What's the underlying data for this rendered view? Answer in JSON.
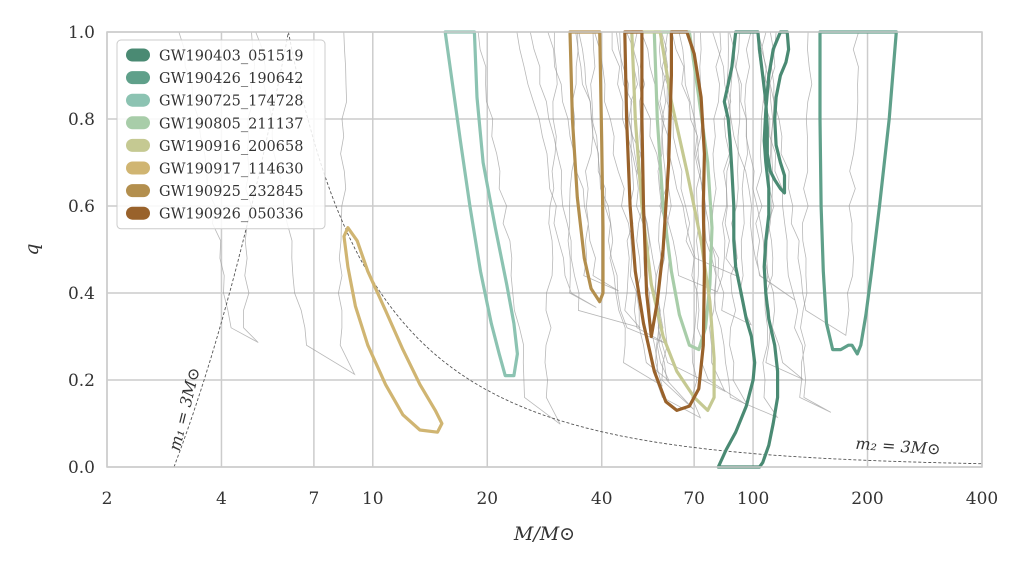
{
  "chart_data": {
    "type": "contour",
    "xlabel": "M/M⊙",
    "ylabel": "q",
    "xscale": "log",
    "xlim": [
      2,
      400
    ],
    "ylim": [
      0,
      1
    ],
    "xticks": [
      2,
      4,
      7,
      10,
      20,
      40,
      70,
      100,
      200,
      400
    ],
    "xtick_labels": [
      "2",
      "4",
      "7",
      "10",
      "20",
      "40",
      "70",
      "100",
      "200",
      "400"
    ],
    "yticks": [
      0,
      0.2,
      0.4,
      0.6,
      0.8,
      1.0
    ],
    "ytick_labels": [
      "0.0",
      "0.2",
      "0.4",
      "0.6",
      "0.8",
      "1.0"
    ],
    "grid": true,
    "legend_position": "top-left",
    "annotations": [
      {
        "text": "m₁ = 3M⊙",
        "curve": "m1 = 3 Msun"
      },
      {
        "text": "m₂ = 3M⊙",
        "curve": "m2 = 3 Msun"
      }
    ],
    "series": [
      {
        "name": "GW190403_051519",
        "color": "#4a8a73",
        "contour": [
          [
            81,
            0.0
          ],
          [
            85,
            0.04
          ],
          [
            90,
            0.08
          ],
          [
            96,
            0.14
          ],
          [
            100,
            0.2
          ],
          [
            101,
            0.24
          ],
          [
            99,
            0.3
          ],
          [
            96,
            0.34
          ],
          [
            93,
            0.4
          ],
          [
            90,
            0.46
          ],
          [
            89,
            0.52
          ],
          [
            89,
            0.6
          ],
          [
            88,
            0.68
          ],
          [
            87,
            0.75
          ],
          [
            86,
            0.8
          ],
          [
            84,
            0.84
          ],
          [
            86,
            0.88
          ],
          [
            88,
            0.92
          ],
          [
            89,
            0.96
          ],
          [
            90,
            1.0
          ],
          [
            103,
            1.0
          ],
          [
            104,
            0.96
          ],
          [
            106,
            0.9
          ],
          [
            108,
            0.84
          ],
          [
            109,
            0.78
          ],
          [
            109,
            0.72
          ],
          [
            111,
            0.68
          ],
          [
            114,
            0.66
          ],
          [
            118,
            0.64
          ],
          [
            121,
            0.63
          ],
          [
            121,
            0.67
          ],
          [
            118,
            0.7
          ],
          [
            115,
            0.74
          ],
          [
            114,
            0.8
          ],
          [
            115,
            0.85
          ],
          [
            118,
            0.9
          ],
          [
            122,
            0.93
          ],
          [
            124,
            0.96
          ],
          [
            123,
            1.0
          ],
          [
            118,
            1.0
          ],
          [
            113,
            0.96
          ],
          [
            110,
            0.9
          ],
          [
            108,
            0.82
          ],
          [
            107,
            0.75
          ],
          [
            108,
            0.7
          ],
          [
            110,
            0.64
          ],
          [
            110,
            0.58
          ],
          [
            108,
            0.52
          ],
          [
            107,
            0.46
          ],
          [
            108,
            0.4
          ],
          [
            110,
            0.34
          ],
          [
            114,
            0.28
          ],
          [
            116,
            0.22
          ],
          [
            116,
            0.16
          ],
          [
            113,
            0.1
          ],
          [
            110,
            0.05
          ],
          [
            106,
            0.01
          ],
          [
            104,
            0.0
          ],
          [
            81,
            0.0
          ]
        ]
      },
      {
        "name": "GW190426_190642",
        "color": "#5fa08a",
        "contour": [
          [
            150,
            1.0
          ],
          [
            150,
            0.8
          ],
          [
            151,
            0.6
          ],
          [
            153,
            0.45
          ],
          [
            156,
            0.33
          ],
          [
            162,
            0.27
          ],
          [
            170,
            0.27
          ],
          [
            178,
            0.28
          ],
          [
            182,
            0.28
          ],
          [
            188,
            0.26
          ],
          [
            192,
            0.28
          ],
          [
            198,
            0.35
          ],
          [
            205,
            0.45
          ],
          [
            215,
            0.6
          ],
          [
            228,
            0.8
          ],
          [
            238,
            1.0
          ],
          [
            150,
            1.0
          ]
        ]
      },
      {
        "name": "GW190725_174728",
        "color": "#8cc3b2",
        "contour": [
          [
            15.5,
            1.0
          ],
          [
            16.2,
            0.88
          ],
          [
            17,
            0.75
          ],
          [
            18,
            0.6
          ],
          [
            19.2,
            0.45
          ],
          [
            20.5,
            0.33
          ],
          [
            21.5,
            0.26
          ],
          [
            22.3,
            0.21
          ],
          [
            23.5,
            0.21
          ],
          [
            24,
            0.26
          ],
          [
            23.5,
            0.33
          ],
          [
            22.5,
            0.42
          ],
          [
            21,
            0.55
          ],
          [
            19.5,
            0.7
          ],
          [
            18.8,
            0.85
          ],
          [
            18.5,
            1.0
          ],
          [
            15.5,
            1.0
          ]
        ]
      },
      {
        "name": "GW190805_211137",
        "color": "#a8cda9",
        "contour": [
          [
            55,
            1.0
          ],
          [
            56,
            0.8
          ],
          [
            58,
            0.6
          ],
          [
            61,
            0.45
          ],
          [
            64,
            0.35
          ],
          [
            68,
            0.28
          ],
          [
            72,
            0.27
          ],
          [
            75,
            0.32
          ],
          [
            77,
            0.42
          ],
          [
            78,
            0.55
          ],
          [
            76,
            0.7
          ],
          [
            72,
            0.85
          ],
          [
            68,
            1.0
          ],
          [
            55,
            1.0
          ]
        ]
      },
      {
        "name": "GW190916_200658",
        "color": "#c5c992",
        "contour": [
          [
            48,
            1.0
          ],
          [
            49,
            0.8
          ],
          [
            51,
            0.6
          ],
          [
            54,
            0.42
          ],
          [
            58,
            0.3
          ],
          [
            63,
            0.22
          ],
          [
            70,
            0.16
          ],
          [
            76,
            0.13
          ],
          [
            79,
            0.16
          ],
          [
            79,
            0.25
          ],
          [
            77,
            0.38
          ],
          [
            73,
            0.52
          ],
          [
            67,
            0.68
          ],
          [
            61,
            0.84
          ],
          [
            57,
            1.0
          ],
          [
            48,
            1.0
          ]
        ]
      },
      {
        "name": "GW190917_114630",
        "color": "#d0b572",
        "contour": [
          [
            8.4,
            0.53
          ],
          [
            8.6,
            0.55
          ],
          [
            9.1,
            0.52
          ],
          [
            9.7,
            0.45
          ],
          [
            10.8,
            0.36
          ],
          [
            12,
            0.27
          ],
          [
            13.3,
            0.19
          ],
          [
            14.6,
            0.13
          ],
          [
            15.2,
            0.1
          ],
          [
            14.8,
            0.08
          ],
          [
            13.3,
            0.085
          ],
          [
            12,
            0.12
          ],
          [
            10.8,
            0.19
          ],
          [
            9.7,
            0.28
          ],
          [
            9,
            0.37
          ],
          [
            8.6,
            0.46
          ],
          [
            8.4,
            0.53
          ]
        ]
      },
      {
        "name": "GW190925_232845",
        "color": "#b38f4e",
        "contour": [
          [
            33,
            1.0
          ],
          [
            33.5,
            0.8
          ],
          [
            34.5,
            0.62
          ],
          [
            36,
            0.48
          ],
          [
            37.5,
            0.41
          ],
          [
            39.5,
            0.38
          ],
          [
            40.3,
            0.4
          ],
          [
            40.3,
            0.55
          ],
          [
            40,
            0.75
          ],
          [
            39.5,
            1.0
          ],
          [
            33,
            1.0
          ]
        ]
      },
      {
        "name": "GW190926_050336",
        "color": "#99622b",
        "contour": [
          [
            46,
            1.0
          ],
          [
            46.5,
            0.8
          ],
          [
            47.5,
            0.6
          ],
          [
            49,
            0.45
          ],
          [
            51.5,
            0.33
          ],
          [
            55,
            0.22
          ],
          [
            59,
            0.15
          ],
          [
            63,
            0.13
          ],
          [
            68,
            0.14
          ],
          [
            72,
            0.18
          ],
          [
            74,
            0.28
          ],
          [
            74.5,
            0.45
          ],
          [
            74,
            0.6
          ],
          [
            74.5,
            0.72
          ],
          [
            73,
            0.85
          ],
          [
            70,
            0.95
          ],
          [
            67,
            1.0
          ],
          [
            61,
            1.0
          ],
          [
            61,
            0.9
          ],
          [
            60,
            0.7
          ],
          [
            58,
            0.5
          ],
          [
            56,
            0.38
          ],
          [
            54,
            0.3
          ],
          [
            52.5,
            0.4
          ],
          [
            51.5,
            0.6
          ],
          [
            51,
            0.8
          ],
          [
            51,
            1.0
          ],
          [
            46,
            1.0
          ]
        ]
      }
    ]
  }
}
